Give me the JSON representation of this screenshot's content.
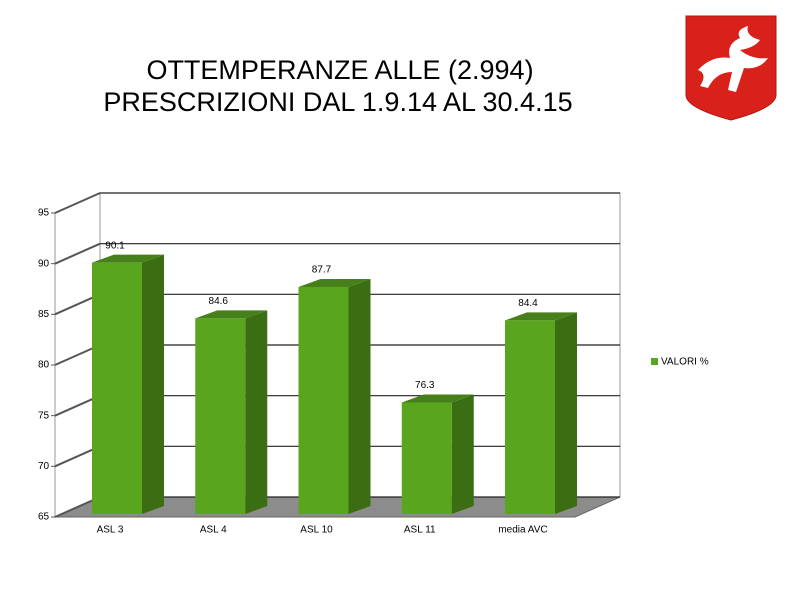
{
  "chart_data": {
    "type": "bar3d",
    "title": "OTTEMPERANZE ALLE (2.994)",
    "subtitle": "PRESCRIZIONI DAL 1.9.14 AL 30.4.15",
    "categories": [
      "ASL 3",
      "ASL 4",
      "ASL 10",
      "ASL 11",
      "media AVC"
    ],
    "series": [
      {
        "name": "VALORI %",
        "color": "#5aa51e",
        "values": [
          90.1,
          84.6,
          87.7,
          76.3,
          84.4
        ]
      }
    ],
    "ylim": [
      65,
      95
    ],
    "yticks": [
      65,
      70,
      75,
      80,
      85,
      90,
      95
    ],
    "grid": true,
    "legend": "right"
  }
}
